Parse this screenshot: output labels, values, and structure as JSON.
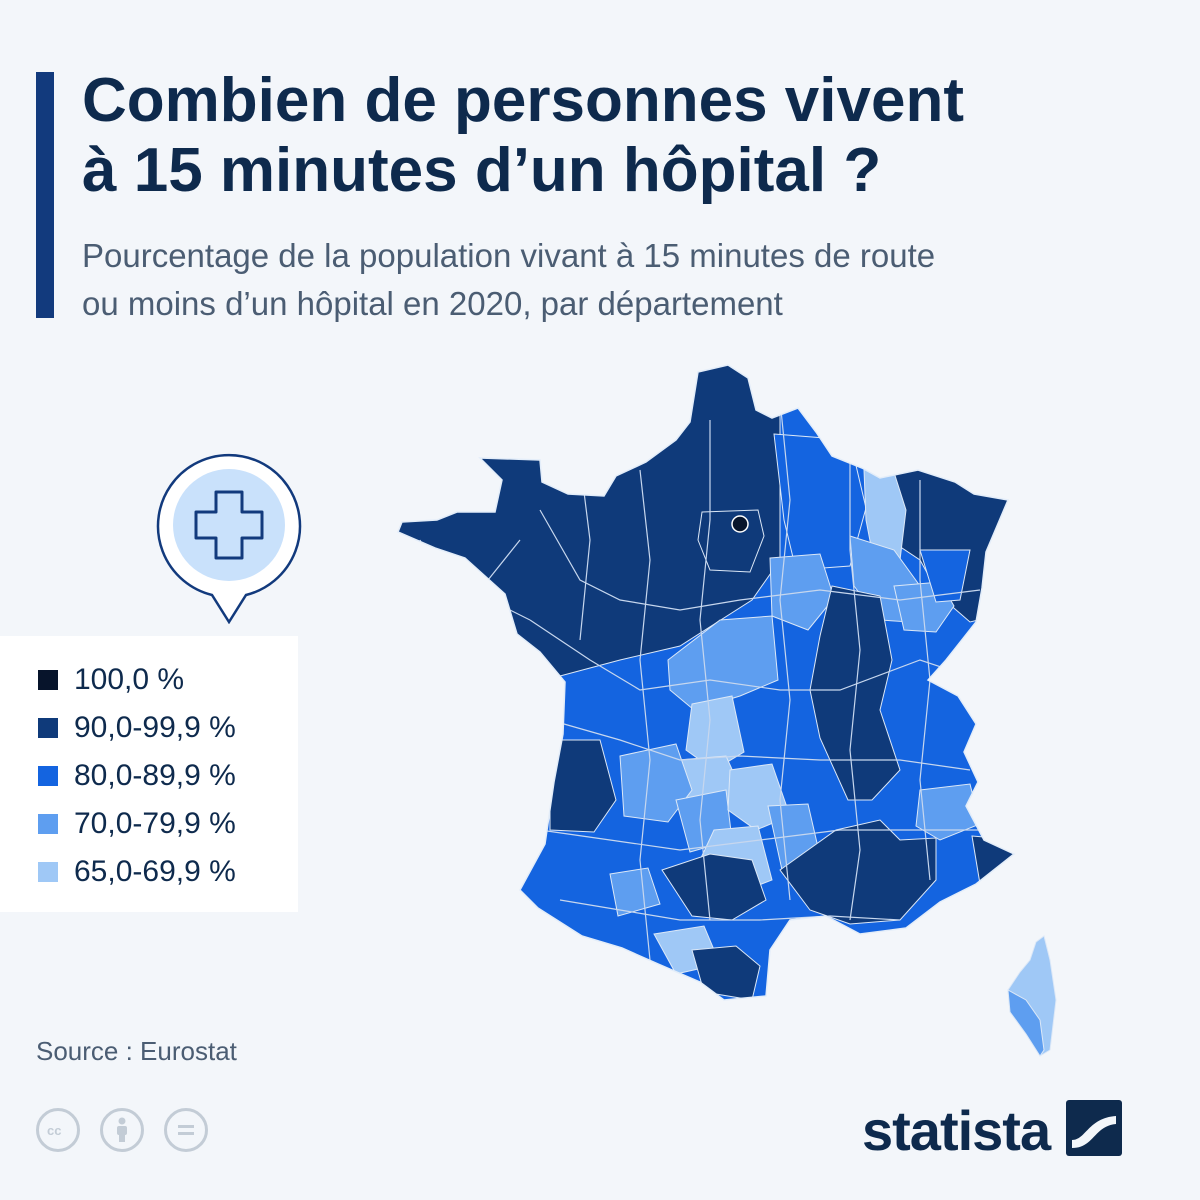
{
  "header": {
    "title_line1": "Combien de personnes vivent",
    "title_line2": "à 15 minutes d’un hôpital ?",
    "subtitle_line1": "Pourcentage de la population vivant à 15 minutes de route",
    "subtitle_line2": "ou moins d’un hôpital en 2020, par département"
  },
  "pin_icon": "hospital-cross-icon",
  "legend": [
    {
      "label": "100,0 %",
      "color": "#07142b"
    },
    {
      "label": "90,0-99,9 %",
      "color": "#0f3a7a"
    },
    {
      "label": "80,0-89,9 %",
      "color": "#1464e0"
    },
    {
      "label": "70,0-79,9 %",
      "color": "#5e9ef0"
    },
    {
      "label": "65,0-69,9 %",
      "color": "#9fc8f6"
    }
  ],
  "map": {
    "subject": "France by department",
    "regions_by_class": {
      "100,0 %": [
        "Paris"
      ],
      "90,0-99,9 %": [
        "Nord",
        "Pas-de-Calais",
        "Somme",
        "Seine-Maritime",
        "Calvados",
        "Manche",
        "Orne",
        "Eure",
        "Oise",
        "Val-d'Oise",
        "Yvelines",
        "Essonne",
        "Seine-et-Marne",
        "Finistère",
        "Côtes-d'Armor",
        "Morbihan",
        "Ille-et-Vilaine",
        "Mayenne",
        "Sarthe",
        "Loire-Atlantique",
        "Maine-et-Loire",
        "Ardennes",
        "Moselle",
        "Bas-Rhin",
        "Côte-d'Or",
        "Saône-et-Loire",
        "Rhône",
        "Ain",
        "Gironde",
        "Haute-Garonne",
        "Tarn",
        "Hérault",
        "Gard",
        "Bouches-du-Rhône",
        "Vaucluse",
        "Alpes-Maritimes",
        "Pyrénées-Orientales",
        "Drôme",
        "Loire"
      ],
      "80,0-89,9 %": [
        "Aisne",
        "Marne",
        "Meuse",
        "Aube",
        "Eure-et-Loir",
        "Loiret",
        "Vendée",
        "Deux-Sèvres",
        "Charente-Maritime",
        "Vienne",
        "Nièvre",
        "Jura",
        "Doubs",
        "Territoire de Belfort",
        "Haute-Savoie",
        "Savoie",
        "Isère",
        "Hautes-Alpes",
        "Var",
        "Landes",
        "Pyrénées-Atlantiques",
        "Gers",
        "Ariège",
        "Aude",
        "Lot-et-Garonne",
        "Allier",
        "Haute-Loire",
        "Ardèche",
        "Charente",
        "Indre-et-Loire",
        "Loir-et-Cher"
      ],
      "70,0-79,9 %": [
        "Yonne",
        "Haute-Marne",
        "Vosges",
        "Haute-Saône",
        "Cher",
        "Indre",
        "Dordogne",
        "Corrèze",
        "Cantal",
        "Lozère",
        "Aveyron",
        "Tarn-et-Garonne",
        "Alpes-de-Haute-Provence",
        "Corse-du-Sud"
      ],
      "65,0-69,9 %": [
        "Meurthe-et-Moselle",
        "Creuse",
        "Haute-Vienne",
        "Puy-de-Dôme",
        "Lot",
        "Hautes-Pyrénées",
        "Haute-Corse"
      ]
    }
  },
  "source": "Source : Eurostat",
  "license_icons": [
    "cc-icon",
    "by-person-icon",
    "nd-equals-icon"
  ],
  "brand": {
    "name": "statista",
    "mark_icon": "statista-logo-icon"
  }
}
